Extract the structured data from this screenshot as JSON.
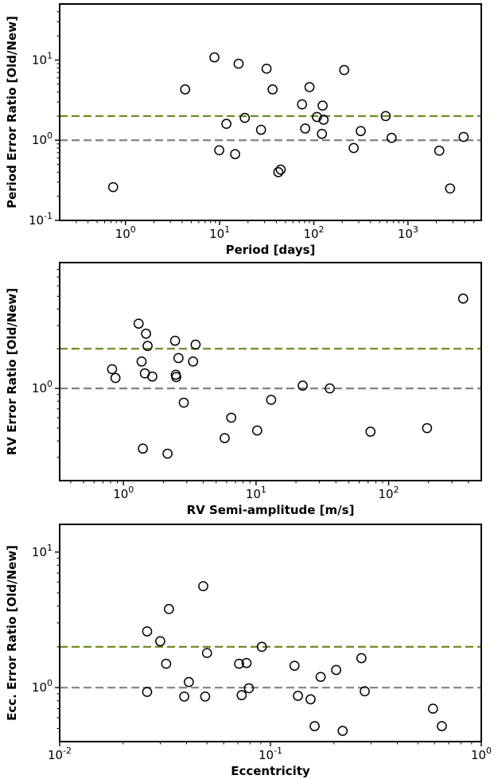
{
  "chart_data": [
    {
      "type": "scatter",
      "xlabel": "Period [days]",
      "ylabel": "Period Error Ratio [Old/New]",
      "xscale": "log",
      "yscale": "log",
      "xlim": [
        0.2,
        6000
      ],
      "ylim": [
        0.1,
        50
      ],
      "xticks": [
        {
          "label": "10",
          "exp": "0"
        },
        {
          "label": "10",
          "exp": "1"
        },
        {
          "label": "10",
          "exp": "2"
        },
        {
          "label": "10",
          "exp": "3"
        }
      ],
      "yticks": [
        {
          "label": "10",
          "exp": "-1"
        },
        {
          "label": "10",
          "exp": "0"
        },
        {
          "label": "10",
          "exp": "1"
        }
      ],
      "hlines": [
        {
          "y": 2.0,
          "color": "#6b8e23",
          "style": "dashed"
        },
        {
          "y": 1.0,
          "color": "#808080",
          "style": "dashed"
        }
      ],
      "points": [
        [
          0.74,
          0.26
        ],
        [
          4.3,
          4.3
        ],
        [
          8.8,
          10.8
        ],
        [
          9.9,
          0.75
        ],
        [
          11.8,
          1.6
        ],
        [
          14.6,
          0.67
        ],
        [
          15.9,
          9.0
        ],
        [
          18.5,
          1.9
        ],
        [
          27.5,
          1.35
        ],
        [
          31.5,
          7.8
        ],
        [
          36.5,
          4.3
        ],
        [
          42.0,
          0.4
        ],
        [
          44.5,
          0.43
        ],
        [
          75.0,
          2.8
        ],
        [
          81.0,
          1.4
        ],
        [
          90.0,
          4.6
        ],
        [
          108.0,
          1.95
        ],
        [
          122.0,
          1.2
        ],
        [
          124.0,
          2.7
        ],
        [
          127.0,
          1.8
        ],
        [
          210.0,
          7.5
        ],
        [
          265.0,
          0.8
        ],
        [
          315.0,
          1.3
        ],
        [
          580.0,
          2.0
        ],
        [
          670.0,
          1.07
        ],
        [
          2150.0,
          0.74
        ],
        [
          2800.0,
          0.25
        ],
        [
          3900.0,
          1.1
        ]
      ]
    },
    {
      "type": "scatter",
      "xlabel": "RV Semi-amplitude [m/s]",
      "ylabel": "RV Error Ratio [Old/New]",
      "xscale": "log",
      "yscale": "log",
      "xlim": [
        0.33,
        500
      ],
      "ylim": [
        0.2,
        9
      ],
      "xticks": [
        {
          "label": "10",
          "exp": "0"
        },
        {
          "label": "10",
          "exp": "1"
        },
        {
          "label": "10",
          "exp": "2"
        }
      ],
      "yticks": [
        {
          "label": "10",
          "exp": "0"
        }
      ],
      "hlines": [
        {
          "y": 2.0,
          "color": "#6b8e23",
          "style": "dashed"
        },
        {
          "y": 1.0,
          "color": "#808080",
          "style": "dashed"
        }
      ],
      "points": [
        [
          0.82,
          1.4
        ],
        [
          0.87,
          1.2
        ],
        [
          1.3,
          3.1
        ],
        [
          1.37,
          1.6
        ],
        [
          1.4,
          0.35
        ],
        [
          1.45,
          1.3
        ],
        [
          1.48,
          2.6
        ],
        [
          1.52,
          2.1
        ],
        [
          1.65,
          1.23
        ],
        [
          2.15,
          0.32
        ],
        [
          2.45,
          2.3
        ],
        [
          2.48,
          1.27
        ],
        [
          2.5,
          1.22
        ],
        [
          2.6,
          1.7
        ],
        [
          2.85,
          0.78
        ],
        [
          3.35,
          1.6
        ],
        [
          3.5,
          2.15
        ],
        [
          5.8,
          0.42
        ],
        [
          6.5,
          0.6
        ],
        [
          10.2,
          0.48
        ],
        [
          13.0,
          0.82
        ],
        [
          22.5,
          1.05
        ],
        [
          36.0,
          1.0
        ],
        [
          73.0,
          0.47
        ],
        [
          195.0,
          0.5
        ],
        [
          365.0,
          4.8
        ]
      ]
    },
    {
      "type": "scatter",
      "xlabel": "Eccentricity",
      "ylabel": "Ecc. Error Ratio [Old/New]",
      "xscale": "log",
      "yscale": "log",
      "xlim": [
        0.01,
        1.0
      ],
      "ylim": [
        0.4,
        16
      ],
      "xticks": [
        {
          "label": "10",
          "exp": "-2"
        },
        {
          "label": "10",
          "exp": "-1"
        },
        {
          "label": "10",
          "exp": "0"
        }
      ],
      "yticks": [
        {
          "label": "10",
          "exp": "0"
        },
        {
          "label": "10",
          "exp": "1"
        }
      ],
      "hlines": [
        {
          "y": 2.0,
          "color": "#6b8e23",
          "style": "dashed"
        },
        {
          "y": 1.0,
          "color": "#808080",
          "style": "dashed"
        }
      ],
      "points": [
        [
          0.026,
          2.6
        ],
        [
          0.026,
          0.93
        ],
        [
          0.03,
          2.2
        ],
        [
          0.032,
          1.5
        ],
        [
          0.033,
          3.8
        ],
        [
          0.039,
          0.86
        ],
        [
          0.041,
          1.1
        ],
        [
          0.048,
          5.6
        ],
        [
          0.049,
          0.86
        ],
        [
          0.05,
          1.8
        ],
        [
          0.071,
          1.5
        ],
        [
          0.073,
          0.88
        ],
        [
          0.077,
          1.52
        ],
        [
          0.079,
          0.99
        ],
        [
          0.091,
          2.0
        ],
        [
          0.13,
          1.45
        ],
        [
          0.135,
          0.87
        ],
        [
          0.155,
          0.82
        ],
        [
          0.162,
          0.52
        ],
        [
          0.173,
          1.2
        ],
        [
          0.205,
          1.35
        ],
        [
          0.22,
          0.48
        ],
        [
          0.27,
          1.65
        ],
        [
          0.28,
          0.94
        ],
        [
          0.59,
          0.7
        ],
        [
          0.65,
          0.52
        ]
      ]
    }
  ]
}
